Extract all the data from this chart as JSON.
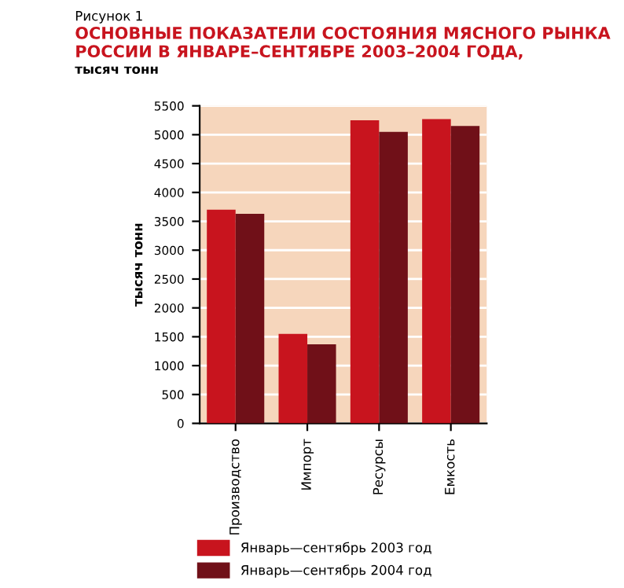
{
  "chart_data": {
    "type": "bar",
    "title": "ОСНОВНЫЕ ПОКАЗАТЕЛИ СОСТОЯНИЯ МЯСНОГО РЫНКА РОССИИ В ЯНВАРЕ–СЕНТЯБРЕ 2003–2004 ГОДА,",
    "subtitle": "тысяч тонн",
    "annotations": [
      "Рисунок 1"
    ],
    "ylabel": "тысяч тонн",
    "categories": [
      "Производство",
      "Импорт",
      "Ресурсы",
      "Емкость"
    ],
    "series": [
      {
        "name": "Январь—сентябрь 2003 год",
        "color": "#c8141e",
        "values": [
          3700,
          1550,
          5250,
          5270
        ]
      },
      {
        "name": "Январь—сентябрь 2004 год",
        "color": "#701018",
        "values": [
          3630,
          1370,
          5050,
          5150
        ]
      }
    ],
    "ylim": [
      0,
      5500
    ],
    "yticks": [
      0,
      500,
      1000,
      1500,
      2000,
      2500,
      3000,
      3500,
      4000,
      4500,
      5000,
      5500
    ],
    "grid": "y",
    "legend": "bottom"
  }
}
